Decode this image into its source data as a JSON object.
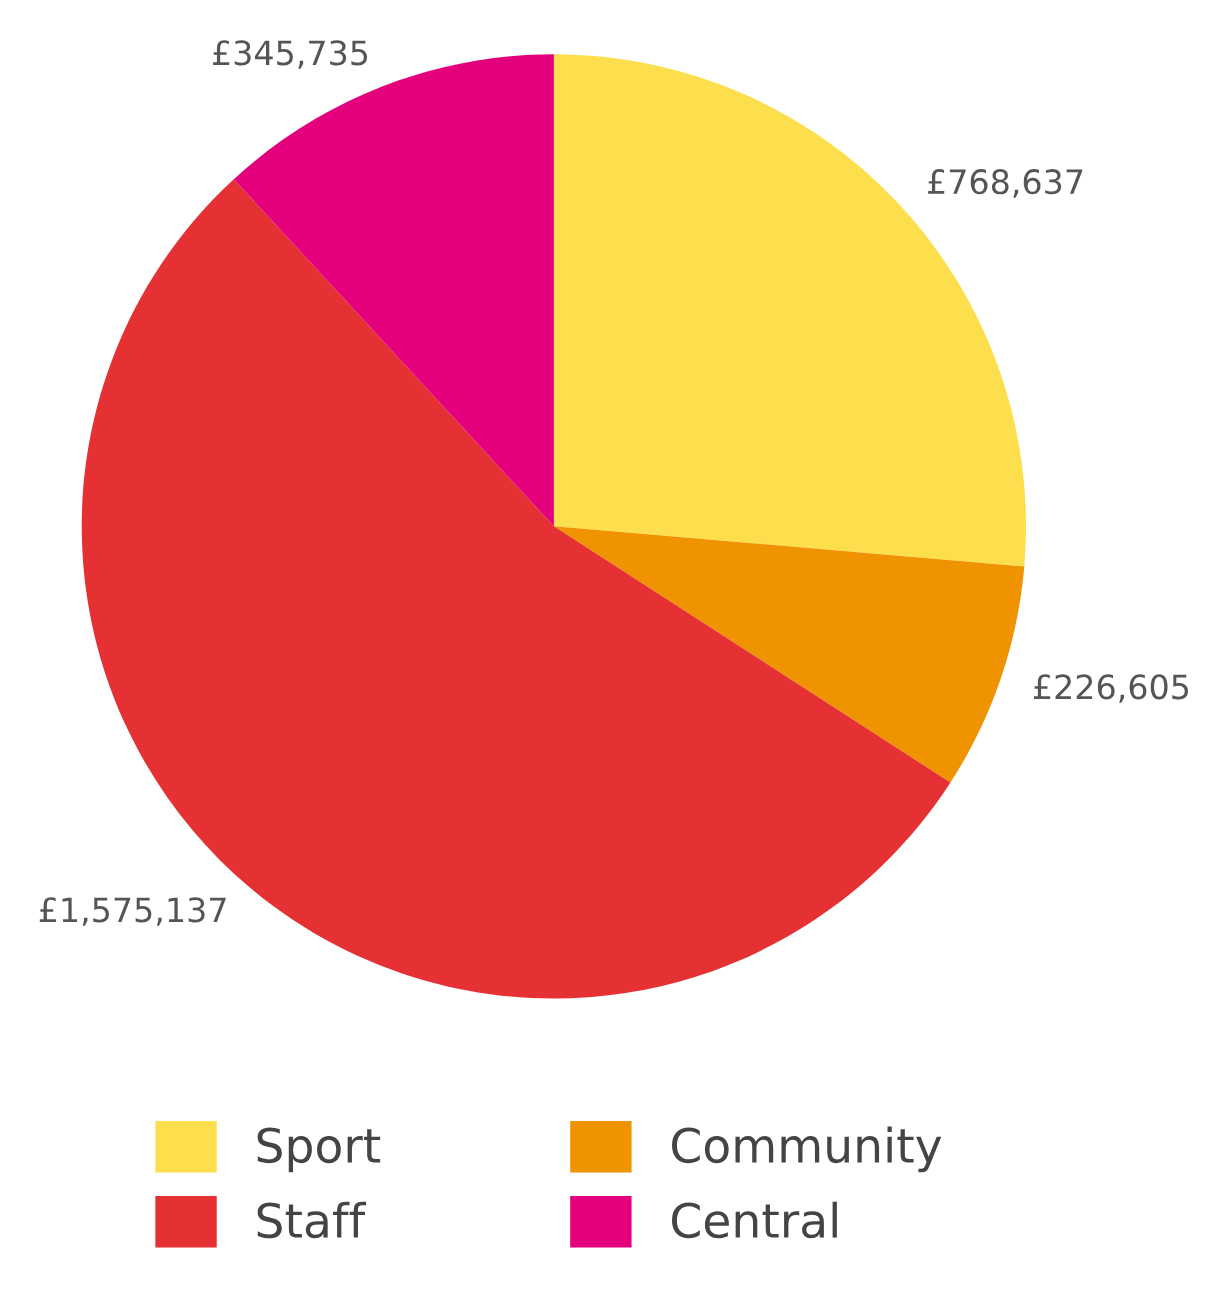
{
  "chart_data": {
    "type": "pie",
    "categories": [
      "Sport",
      "Community",
      "Staff",
      "Central"
    ],
    "values": [
      768637,
      226605,
      1575137,
      345735
    ],
    "colors": [
      "#fddf4e",
      "#f09300",
      "#e53034",
      "#e4007c"
    ],
    "value_labels": [
      "£768,637",
      "£226,605",
      "£1,575,137",
      "£345,735"
    ],
    "legend": "bottom"
  }
}
